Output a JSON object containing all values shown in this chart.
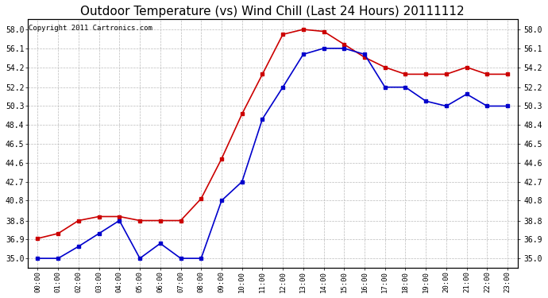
{
  "title": "Outdoor Temperature (vs) Wind Chill (Last 24 Hours) 20111112",
  "copyright": "Copyright 2011 Cartronics.com",
  "x_labels": [
    "00:00",
    "01:00",
    "02:00",
    "03:00",
    "04:00",
    "05:00",
    "06:00",
    "07:00",
    "08:00",
    "09:00",
    "10:00",
    "11:00",
    "12:00",
    "13:00",
    "14:00",
    "15:00",
    "16:00",
    "17:00",
    "18:00",
    "19:00",
    "20:00",
    "21:00",
    "22:00",
    "23:00"
  ],
  "temp_red": [
    37.0,
    37.5,
    38.8,
    39.2,
    39.2,
    38.8,
    38.8,
    38.8,
    41.0,
    45.0,
    49.5,
    53.5,
    57.5,
    58.0,
    57.8,
    56.5,
    55.2,
    54.2,
    53.5,
    53.5,
    53.5,
    54.2,
    53.5,
    53.5
  ],
  "wind_chill_blue": [
    35.0,
    35.0,
    36.2,
    37.5,
    38.8,
    35.0,
    36.5,
    35.0,
    35.0,
    40.8,
    42.7,
    49.0,
    52.2,
    55.5,
    56.1,
    56.1,
    55.5,
    52.2,
    52.2,
    50.8,
    50.3,
    51.5,
    50.3,
    50.3
  ],
  "ylim_min": 34.05,
  "ylim_max": 59.0,
  "yticks": [
    35.0,
    36.9,
    38.8,
    40.8,
    42.7,
    44.6,
    46.5,
    48.4,
    50.3,
    52.2,
    54.2,
    56.1,
    58.0
  ],
  "fig_bg": "#ffffff",
  "plot_bg": "#ffffff",
  "red_color": "#cc0000",
  "blue_color": "#0000cc",
  "grid_color": "#bbbbbb",
  "title_fontsize": 11,
  "copyright_fontsize": 6.5,
  "marker_size": 3.0,
  "line_width": 1.2
}
